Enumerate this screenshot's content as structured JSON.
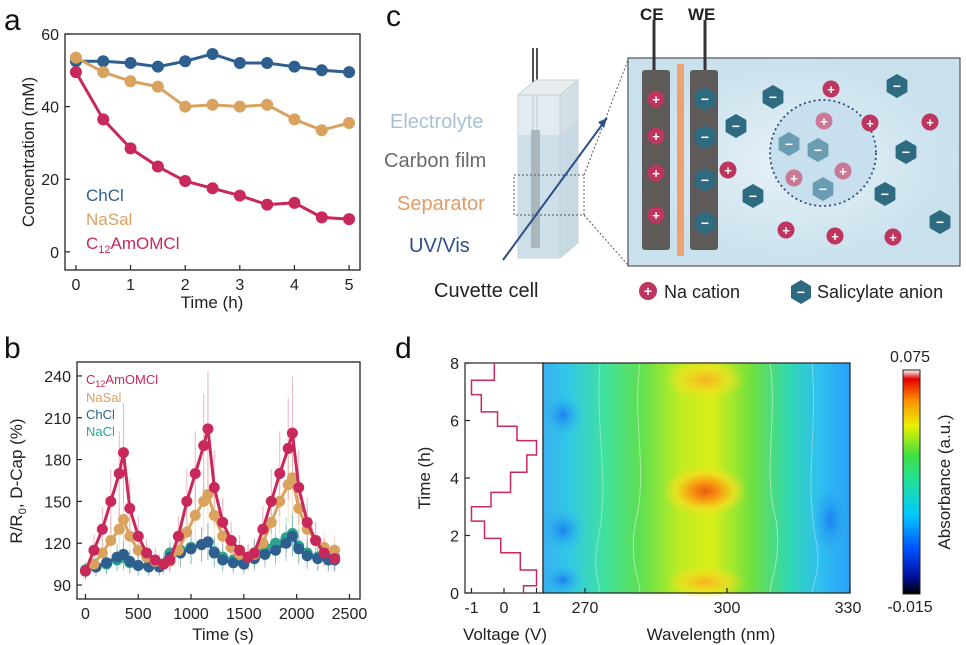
{
  "colors": {
    "chcl": "#2f5f8f",
    "nasal": "#d9a25f",
    "c12": "#c8285a",
    "nacl": "#2aa48e",
    "cell_bg": "#d4e8f1",
    "electrode": "#5d5a59",
    "separator": "#f0a070",
    "anion": "#2e6a80",
    "cation": "#bd3660"
  },
  "panels": {
    "a": {
      "letter": "a"
    },
    "b": {
      "letter": "b"
    },
    "c": {
      "letter": "c"
    },
    "d": {
      "letter": "d"
    }
  },
  "chart_data": [
    {
      "panel": "a",
      "type": "line",
      "xlabel": "Time (h)",
      "ylabel": "Concentration (mM)",
      "xlim": [
        -0.2,
        5.2
      ],
      "ylim": [
        -5,
        60
      ],
      "xticks": [
        "0",
        "1",
        "2",
        "3",
        "4",
        "5"
      ],
      "yticks": [
        "0",
        "20",
        "40",
        "60"
      ],
      "legend_placement": "bottom-left",
      "series": [
        {
          "name": "ChCl",
          "color_key": "chcl",
          "x": [
            0,
            0.5,
            1,
            1.5,
            2,
            2.5,
            3,
            3.5,
            4,
            4.5,
            5
          ],
          "y": [
            52.5,
            52.5,
            52,
            51,
            52.5,
            54.5,
            52,
            52,
            51,
            50,
            49.5
          ]
        },
        {
          "name": "NaSal",
          "color_key": "nasal",
          "x": [
            0,
            0.5,
            1,
            1.5,
            2,
            2.5,
            3,
            3.5,
            4,
            4.5,
            5
          ],
          "y": [
            53.5,
            49.5,
            47,
            45.5,
            40,
            40.5,
            40,
            40.5,
            36.5,
            33.5,
            35.5
          ]
        },
        {
          "name": "C12AmOMCl",
          "color_key": "c12",
          "x": [
            0,
            0.5,
            1,
            1.5,
            2,
            2.5,
            3,
            3.5,
            4,
            4.5,
            5
          ],
          "y": [
            49.5,
            36.5,
            28.5,
            23.5,
            19.5,
            17.5,
            15.5,
            13,
            13.5,
            9.5,
            9
          ]
        }
      ]
    },
    {
      "panel": "b",
      "type": "line",
      "xlabel": "Time (s)",
      "ylabel": "R/R0, D-Cap (%)",
      "xlim": [
        -80,
        2600
      ],
      "ylim": [
        80,
        250
      ],
      "xticks": [
        "0",
        "500",
        "1000",
        "1500",
        "2000",
        "2500"
      ],
      "yticks": [
        "90",
        "120",
        "150",
        "180",
        "210",
        "240"
      ],
      "legend_placement": "top-left",
      "series": [
        {
          "name": "C12AmOMCl",
          "color_key": "c12",
          "x": [
            0,
            80,
            160,
            240,
            320,
            360,
            420,
            500,
            580,
            660,
            740,
            800,
            880,
            960,
            1040,
            1120,
            1160,
            1220,
            1300,
            1380,
            1460,
            1540,
            1600,
            1680,
            1760,
            1840,
            1920,
            1960,
            2020,
            2100,
            2180,
            2260,
            2360
          ],
          "y": [
            100,
            115,
            130,
            150,
            170,
            185,
            145,
            125,
            113,
            108,
            105,
            108,
            125,
            150,
            170,
            190,
            202,
            160,
            135,
            122,
            115,
            110,
            113,
            130,
            150,
            170,
            188,
            199,
            160,
            135,
            122,
            113,
            109
          ]
        },
        {
          "name": "NaSal",
          "color_key": "nasal",
          "x": [
            0,
            80,
            160,
            240,
            320,
            360,
            420,
            500,
            580,
            660,
            740,
            800,
            880,
            960,
            1040,
            1120,
            1160,
            1220,
            1300,
            1380,
            1460,
            1540,
            1600,
            1680,
            1760,
            1840,
            1920,
            1960,
            2020,
            2100,
            2180,
            2260,
            2360
          ],
          "y": [
            100,
            105,
            113,
            122,
            130,
            137,
            125,
            115,
            110,
            107,
            105,
            107,
            115,
            128,
            140,
            150,
            155,
            140,
            125,
            117,
            112,
            110,
            112,
            120,
            135,
            150,
            162,
            167,
            145,
            130,
            122,
            117,
            115
          ]
        },
        {
          "name": "ChCl",
          "color_key": "chcl",
          "x": [
            0,
            100,
            200,
            300,
            360,
            420,
            500,
            600,
            700,
            800,
            900,
            1000,
            1100,
            1160,
            1220,
            1300,
            1400,
            1500,
            1600,
            1700,
            1800,
            1900,
            1960,
            2020,
            2100,
            2200,
            2300,
            2360
          ],
          "y": [
            100,
            103,
            106,
            110,
            112,
            107,
            104,
            103,
            103,
            110,
            113,
            116,
            119,
            121,
            113,
            108,
            106,
            105,
            109,
            112,
            115,
            120,
            125,
            116,
            111,
            109,
            108,
            108
          ]
        },
        {
          "name": "NaCl",
          "color_key": "nacl",
          "x": [
            0,
            100,
            200,
            300,
            360,
            420,
            500,
            600,
            700,
            800,
            900,
            1000,
            1100,
            1160,
            1220,
            1300,
            1400,
            1500,
            1600,
            1700,
            1800,
            1900,
            1960,
            2020,
            2100,
            2200,
            2300,
            2360
          ],
          "y": [
            101,
            103,
            105,
            108,
            110,
            106,
            104,
            104,
            105,
            113,
            115,
            117,
            119,
            121,
            114,
            110,
            108,
            107,
            113,
            117,
            120,
            124,
            127,
            118,
            113,
            110,
            110,
            110
          ]
        }
      ]
    },
    {
      "panel": "d",
      "type": "heatmap",
      "xlabel": "Wavelength (nm)",
      "ylabel": "Time (h)",
      "xticks": [
        "270",
        "300",
        "330"
      ],
      "yticks": [
        "0",
        "2",
        "4",
        "6",
        "8"
      ],
      "ylim": [
        0,
        8
      ],
      "colorbar_label": "Absorbance (a.u.)",
      "colorbar_max": "0.075",
      "colorbar_min": "-0.015",
      "voltage_xlabel": "Voltage (V)",
      "voltage_xticks": [
        "-1",
        "0",
        "1"
      ],
      "voltage_profile": {
        "t": [
          0,
          0.25,
          0.25,
          0.8,
          0.8,
          1.4,
          1.4,
          1.9,
          1.9,
          2.5,
          2.5,
          3.0,
          3.0,
          3.5,
          3.5,
          4.2,
          4.2,
          4.8,
          4.8,
          5.3,
          5.3,
          5.8,
          5.8,
          6.3,
          6.3,
          6.9,
          6.9,
          7.4,
          7.4,
          8.0
        ],
        "v": [
          0.6,
          0.6,
          1.0,
          1.0,
          0.5,
          0.5,
          -0.1,
          -0.1,
          -0.6,
          -0.6,
          -1.0,
          -1.0,
          -0.4,
          -0.4,
          0.2,
          0.2,
          0.7,
          0.7,
          1.0,
          1.0,
          0.4,
          0.4,
          -0.2,
          -0.2,
          -0.7,
          -0.7,
          -1.0,
          -1.0,
          -0.3,
          -0.3
        ]
      }
    }
  ],
  "legend_a": {
    "chcl": "ChCl",
    "nasal": "NaSal",
    "c12_prefix": "C",
    "c12_sub": "12",
    "c12_suffix": "AmOMCl"
  },
  "legend_b": {
    "c12_prefix": "C",
    "c12_sub": "12",
    "c12_suffix": "AmOMCl",
    "nasal": "NaSal",
    "chcl": "ChCl",
    "nacl": "NaCl"
  },
  "ylabel_b": {
    "prefix": "R/R",
    "sub": "0",
    "suffix": ", D-Cap (%)"
  },
  "schematic": {
    "ce_label": "CE",
    "we_label": "WE",
    "electrolyte": "Electrolyte",
    "carbon_film": "Carbon film",
    "separator": "Separator",
    "uvvis": "UV/Vis",
    "cuvette": "Cuvette cell",
    "na_legend": "Na cation",
    "sal_legend": "Salicylate anion",
    "plus": "+",
    "minus": "−"
  }
}
